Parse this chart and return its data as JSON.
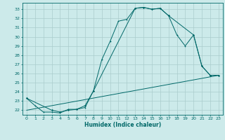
{
  "background_color": "#cceaea",
  "grid_color": "#aacccc",
  "line_color": "#006868",
  "xlabel": "Humidex (Indice chaleur)",
  "ylim": [
    21.5,
    33.7
  ],
  "xlim": [
    -0.5,
    23.5
  ],
  "yticks": [
    22,
    23,
    24,
    25,
    26,
    27,
    28,
    29,
    30,
    31,
    32,
    33
  ],
  "xticks": [
    0,
    1,
    2,
    3,
    4,
    5,
    6,
    7,
    8,
    9,
    10,
    11,
    12,
    13,
    14,
    15,
    16,
    17,
    18,
    19,
    20,
    21,
    22,
    23
  ],
  "line1_x": [
    0,
    1,
    2,
    3,
    4,
    5,
    6,
    7,
    8,
    9,
    10,
    11,
    12,
    13,
    14,
    15,
    16,
    17,
    18,
    19,
    20,
    21,
    22,
    23
  ],
  "line1_y": [
    23.3,
    22.5,
    21.8,
    21.8,
    21.7,
    22.1,
    22.1,
    22.3,
    24.1,
    27.5,
    29.5,
    31.7,
    31.9,
    33.1,
    33.2,
    33.0,
    33.1,
    32.3,
    30.2,
    29.0,
    30.2,
    26.8,
    25.8,
    25.8
  ],
  "line2_x": [
    0,
    3,
    4,
    5,
    6,
    7,
    8,
    13,
    14,
    15,
    16,
    17,
    20,
    21,
    22,
    23
  ],
  "line2_y": [
    23.3,
    22.0,
    21.8,
    22.0,
    22.1,
    22.5,
    24.1,
    33.1,
    33.2,
    33.0,
    33.1,
    32.3,
    30.2,
    26.8,
    25.8,
    25.8
  ],
  "line3_x": [
    0,
    23
  ],
  "line3_y": [
    22.0,
    25.8
  ],
  "tick_fontsize": 4.5,
  "xlabel_fontsize": 5.5,
  "lw": 0.7,
  "marker_size": 2.0
}
